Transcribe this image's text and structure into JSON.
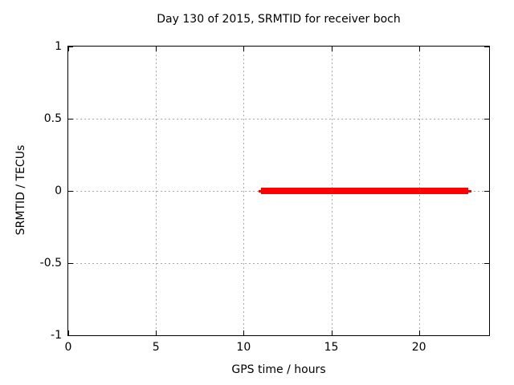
{
  "chart_data": {
    "type": "line",
    "title": "Day 130 of 2015, SRMTID for receiver boch",
    "xlabel": "GPS time / hours",
    "ylabel": "SRMTID / TECUs",
    "xlim": [
      0,
      24
    ],
    "ylim": [
      -1,
      1
    ],
    "xticks": [
      0,
      5,
      10,
      15,
      20
    ],
    "xtick_labels": [
      "0",
      "5",
      "10",
      "15",
      "20"
    ],
    "yticks": [
      1,
      0.5,
      0,
      -0.5,
      -1
    ],
    "ytick_labels": [
      "1",
      "0.5",
      "0",
      "-0.5",
      "-1"
    ],
    "grid": true,
    "legend_position": "none",
    "series": [
      {
        "name": "SRMTID",
        "color": "#ff0000",
        "x": [
          11,
          23
        ],
        "y": [
          0,
          0
        ]
      }
    ],
    "colors": {
      "series": "#ff0000",
      "grid": "#a8a8a8",
      "axis": "#000000",
      "background": "#ffffff",
      "text": "#000000"
    }
  }
}
